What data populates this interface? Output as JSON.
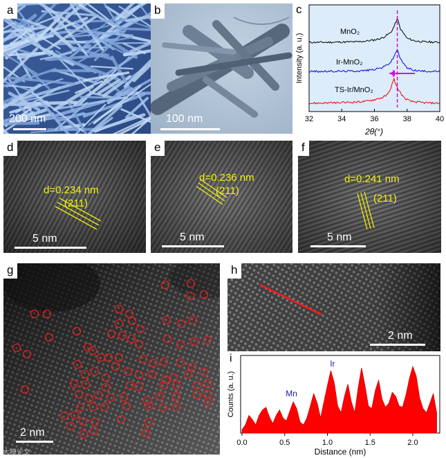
{
  "panels": {
    "a": {
      "label": "a",
      "scale": "200 nm"
    },
    "b": {
      "label": "b",
      "scale": "100 nm"
    },
    "c": {
      "label": "c"
    },
    "d": {
      "label": "d",
      "spacing": "d=0.234 nm",
      "plane": "(211)",
      "scale": "5 nm"
    },
    "e": {
      "label": "e",
      "spacing": "d=0.236 nm",
      "plane": "(211)",
      "scale": "5 nm"
    },
    "f": {
      "label": "f",
      "spacing": "d=0.241 nm",
      "plane": "(211)",
      "scale": "5 nm"
    },
    "g": {
      "label": "g",
      "scale": "2 nm"
    },
    "h": {
      "label": "h",
      "scale": "2 nm"
    },
    "i": {
      "label": "i"
    }
  },
  "watermark": "大模论文",
  "colors": {
    "annotation": "#f2f20a",
    "circle": "#e02020",
    "xrd_bg": "#dcecfa",
    "line_red": "#ff1a1a",
    "peak_marker": "#cc00cc"
  },
  "chart_data": [
    {
      "type": "line",
      "panel": "c",
      "xlabel": "2θ(°)",
      "ylabel": "Intensity (a. u.)",
      "xlim": [
        32,
        40
      ],
      "xticks": [
        32,
        34,
        36,
        38,
        40
      ],
      "yticks": "none",
      "grid": false,
      "reference_line_x": 37.4,
      "series": [
        {
          "name": "MnO₂",
          "color": "#000000",
          "x": [
            32,
            33,
            34,
            35,
            35.5,
            36,
            36.5,
            37,
            37.2,
            37.4,
            37.6,
            38,
            38.5,
            39,
            40
          ],
          "y": [
            0.05,
            0.05,
            0.06,
            0.07,
            0.1,
            0.14,
            0.22,
            0.42,
            0.65,
            0.95,
            0.55,
            0.2,
            0.1,
            0.07,
            0.05
          ]
        },
        {
          "name": "Ir-MnO₂",
          "color": "#0000ee",
          "x": [
            32,
            33,
            34,
            35,
            35.5,
            36,
            36.5,
            37,
            37.2,
            37.4,
            37.6,
            38,
            38.5,
            39,
            40
          ],
          "y": [
            0.05,
            0.05,
            0.06,
            0.07,
            0.09,
            0.13,
            0.2,
            0.4,
            0.62,
            0.9,
            0.5,
            0.18,
            0.09,
            0.06,
            0.05
          ]
        },
        {
          "name": "TS-Ir/MnO₂",
          "color": "#ee0000",
          "x": [
            32,
            33,
            34,
            35,
            35.5,
            36,
            36.5,
            36.8,
            37,
            37.2,
            37.4,
            37.8,
            38.2,
            39,
            40
          ],
          "y": [
            0.05,
            0.06,
            0.07,
            0.1,
            0.12,
            0.18,
            0.26,
            0.36,
            0.6,
            0.92,
            0.6,
            0.25,
            0.12,
            0.07,
            0.05
          ]
        }
      ],
      "annotations": [
        "MnO₂",
        "Ir-MnO₂",
        "TS-Ir/MnO₂"
      ]
    },
    {
      "type": "area",
      "panel": "i",
      "xlabel": "Distance (nm)",
      "ylabel": "Counts (a. u.)",
      "xlim": [
        0,
        2.3
      ],
      "xticks": [
        0.0,
        0.5,
        1.0,
        1.5,
        2.0
      ],
      "yticks": "none",
      "grid": false,
      "annotations": [
        {
          "text": "Mn",
          "x": 0.58
        },
        {
          "text": "Ir",
          "x": 1.06
        }
      ],
      "series": [
        {
          "name": "",
          "color": "#ff0000",
          "x": [
            0.0,
            0.04,
            0.08,
            0.12,
            0.16,
            0.2,
            0.24,
            0.28,
            0.32,
            0.36,
            0.4,
            0.44,
            0.48,
            0.52,
            0.56,
            0.6,
            0.64,
            0.68,
            0.72,
            0.76,
            0.8,
            0.84,
            0.88,
            0.92,
            0.96,
            1.0,
            1.04,
            1.08,
            1.12,
            1.16,
            1.2,
            1.24,
            1.28,
            1.32,
            1.36,
            1.4,
            1.44,
            1.48,
            1.52,
            1.56,
            1.6,
            1.64,
            1.68,
            1.72,
            1.76,
            1.8,
            1.84,
            1.88,
            1.92,
            1.96,
            2.0,
            2.04,
            2.08,
            2.12,
            2.16,
            2.2,
            2.24,
            2.28
          ],
          "y": [
            0.05,
            0.12,
            0.26,
            0.2,
            0.12,
            0.26,
            0.34,
            0.38,
            0.24,
            0.14,
            0.26,
            0.34,
            0.22,
            0.18,
            0.32,
            0.46,
            0.36,
            0.16,
            0.12,
            0.22,
            0.4,
            0.58,
            0.44,
            0.22,
            0.46,
            0.7,
            0.92,
            0.74,
            0.4,
            0.3,
            0.54,
            0.72,
            0.46,
            0.3,
            0.66,
            0.96,
            0.7,
            0.4,
            0.36,
            0.62,
            0.78,
            0.5,
            0.38,
            0.44,
            0.6,
            0.54,
            0.4,
            0.38,
            0.56,
            0.8,
            0.98,
            0.84,
            0.52,
            0.36,
            0.3,
            0.44,
            0.58,
            0.3
          ]
        }
      ]
    }
  ]
}
